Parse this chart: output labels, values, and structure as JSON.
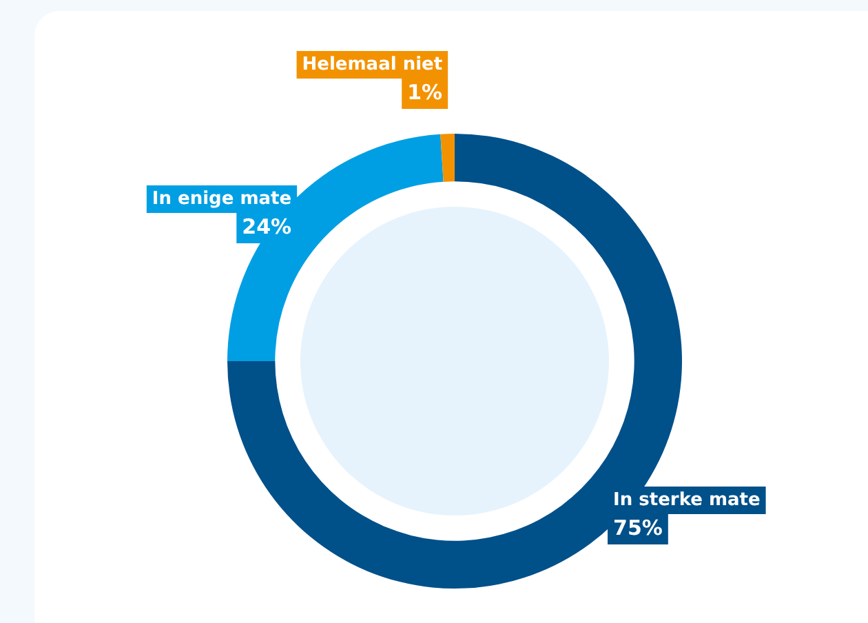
{
  "chart_data": {
    "type": "donut",
    "categories": [
      "In sterke mate",
      "In enige mate",
      "Helemaal niet"
    ],
    "values": [
      75,
      24,
      1
    ],
    "colors": [
      "#00508a",
      "#009fe3",
      "#f39200"
    ],
    "value_labels": [
      "75%",
      "24%",
      "1%"
    ],
    "legend": false
  }
}
